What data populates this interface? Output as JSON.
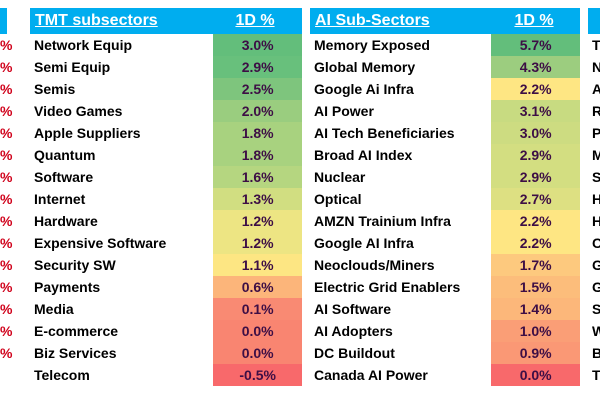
{
  "left_edge": {
    "fragments": [
      "%",
      "%",
      "%",
      "%",
      "%",
      "%",
      "%",
      "%",
      "%",
      "%",
      "%",
      "%",
      "%",
      "%",
      "%"
    ],
    "color": "#d0021b"
  },
  "tmt": {
    "header_name": "TMT subsectors",
    "header_val": "1D %",
    "rows": [
      {
        "name": "Network Equip",
        "value": "3.0%",
        "color": "#63be7b"
      },
      {
        "name": "Semi Equip",
        "value": "2.9%",
        "color": "#68c07c"
      },
      {
        "name": "Semis",
        "value": "2.5%",
        "color": "#7ec57d"
      },
      {
        "name": "Video Games",
        "value": "2.0%",
        "color": "#9acd7f"
      },
      {
        "name": "Apple Suppliers",
        "value": "1.8%",
        "color": "#a8d27f"
      },
      {
        "name": "Quantum",
        "value": "1.8%",
        "color": "#a8d27f"
      },
      {
        "name": "Software",
        "value": "1.6%",
        "color": "#b5d680"
      },
      {
        "name": "Internet",
        "value": "1.3%",
        "color": "#d1de81"
      },
      {
        "name": "Hardware",
        "value": "1.2%",
        "color": "#ede583"
      },
      {
        "name": "Expensive Software",
        "value": "1.2%",
        "color": "#ede583"
      },
      {
        "name": "Security SW",
        "value": "1.1%",
        "color": "#fde683"
      },
      {
        "name": "Payments",
        "value": "0.6%",
        "color": "#fcb57a"
      },
      {
        "name": "Media",
        "value": "0.1%",
        "color": "#f98a73"
      },
      {
        "name": "E-commerce",
        "value": "0.0%",
        "color": "#f98571"
      },
      {
        "name": "Biz Services",
        "value": "0.0%",
        "color": "#f98571"
      },
      {
        "name": "Telecom",
        "value": "-0.5%",
        "color": "#f8696b"
      }
    ]
  },
  "ai": {
    "header_name": "AI Sub-Sectors",
    "header_val": "1D %",
    "rows": [
      {
        "name": "Memory Exposed",
        "value": "5.7%",
        "color": "#63be7b"
      },
      {
        "name": "Global Memory",
        "value": "4.3%",
        "color": "#9ccd7f"
      },
      {
        "name": "Google Ai Infra",
        "value": "2.2%",
        "color": "#fee683"
      },
      {
        "name": "AI Power",
        "value": "3.1%",
        "color": "#c8db81"
      },
      {
        "name": "AI Tech Beneficiaries",
        "value": "3.0%",
        "color": "#cddc81"
      },
      {
        "name": "Broad AI Index",
        "value": "2.9%",
        "color": "#d3de81"
      },
      {
        "name": "Nuclear",
        "value": "2.9%",
        "color": "#d3de81"
      },
      {
        "name": "Optical",
        "value": "2.7%",
        "color": "#dde082"
      },
      {
        "name": "AMZN Trainium Infra",
        "value": "2.2%",
        "color": "#fee683"
      },
      {
        "name": "Google AI Infra",
        "value": "2.2%",
        "color": "#fee683"
      },
      {
        "name": "Neoclouds/Miners",
        "value": "1.7%",
        "color": "#fdc97e"
      },
      {
        "name": "Electric Grid Enablers",
        "value": "1.5%",
        "color": "#fcbd7b"
      },
      {
        "name": "AI Software",
        "value": "1.4%",
        "color": "#fcb77a"
      },
      {
        "name": "AI Adopters",
        "value": "1.0%",
        "color": "#fa9e76"
      },
      {
        "name": "DC Buildout",
        "value": "0.9%",
        "color": "#fa9875"
      },
      {
        "name": "Canada AI Power",
        "value": "0.0%",
        "color": "#f8696b"
      }
    ]
  },
  "right_edge": {
    "fragments": [
      "T",
      "N",
      "A",
      "R",
      "P",
      "M",
      "S",
      "H",
      "H",
      "C",
      "G",
      "G",
      "S",
      "W",
      "B",
      "T"
    ]
  }
}
